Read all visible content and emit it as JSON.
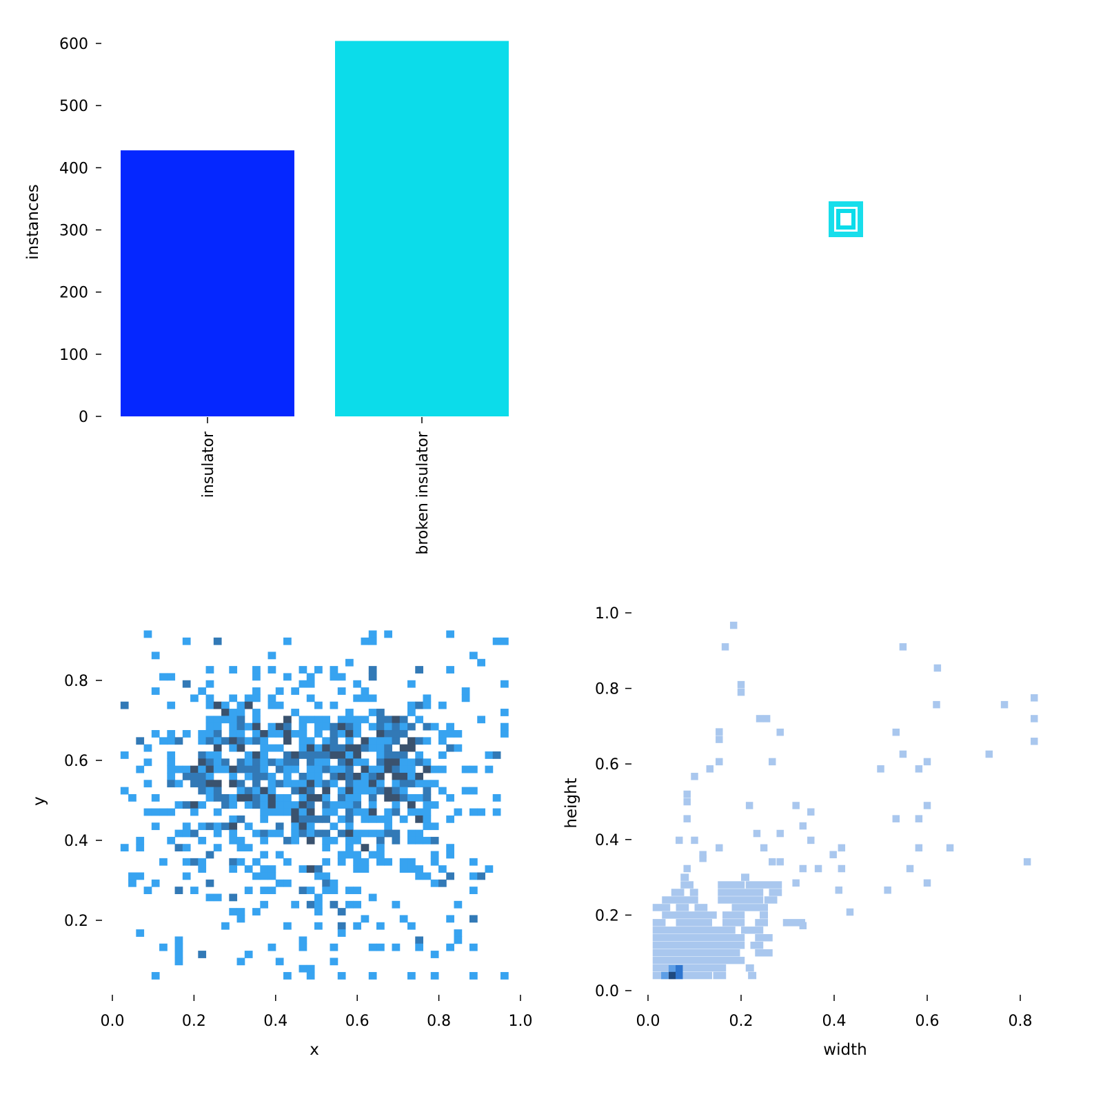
{
  "chart_data": [
    {
      "type": "bar",
      "categories": [
        "insulator",
        "broken insulator"
      ],
      "values": [
        428,
        604
      ],
      "colors": [
        "#0527ff",
        "#0cdcea"
      ],
      "ylabel": "instances",
      "xlabel": "",
      "ylim": [
        0,
        600
      ],
      "yticks": [
        "0",
        "100",
        "200",
        "300",
        "400",
        "500",
        "600"
      ],
      "grid": false
    },
    {
      "type": "box-overlay",
      "color": "#0cdcea"
    },
    {
      "type": "heatmap",
      "xlabel": "x",
      "ylabel": "y",
      "xlim": [
        0.0,
        1.0
      ],
      "ylim": [
        0.0,
        1.0
      ],
      "xticks": [
        "0.0",
        "0.2",
        "0.4",
        "0.6",
        "0.8",
        "1.0"
      ],
      "yticks": [
        "0.2",
        "0.4",
        "0.6",
        "0.8"
      ],
      "bins": {
        "x_start": 0.02,
        "x_width": 0.019,
        "y_top": 0.925,
        "y_height": 0.0178
      },
      "level_colors": {
        "1": "#37a3f0",
        "2": "#3279b6",
        "3": "#3a526e"
      },
      "rows": [
        "3 32 34 42",
        "8 12:2 21 31 32 48 49",
        "",
        "4 19 45",
        "29 46",
        "11 14 17 19 23 25 27 32:2 38:2 42",
        "5 6 17 21 24 27 28 32:2",
        "8:2 11 23 24 30 37 49",
        "4 10 17 20 22 28 31 44",
        "9 11 14 16 17 19 24 30 31 32 39 44",
        "0:2 6 11 12:3 13 15 16:3 19 20 25 27 37 38:2 39 41",
        "13:3 14 15 17 22 29 32 33:2 37 49",
        "11 12 13 14 15:2 17 21:3 23 24 25 26 28 29 30 31 33:2 34:2 35:3 36:2 38 46",
        "11 12 14 15:2 16 17:3 19 20:3 21:2 23 25 26 27:2 28:3 29:2 30 32 33:2 34 35:2 36 37:2 39:2 40 42 49",
        "4 6 8 10 11 12:2 14 15 17 18:3 19 20 21:3 22 23 25 27:2 28 29:3 30 33:3 34:2 35:2 36:2 41 42 43 49",
        "2:2 5 6 7:2 10 11:2 12 13:2 14:3 15:2 16 17:2 18 21:3 23 24 26 27:2 29 31:3 32 33 34 35:2 37:3 38:2 39 41",
        "3 12:3 14 15:3 18 19 20 23 24:3 25 26:3 27:2 28:2 29:3 30:3 31:2 32 33 34:2 36:3 37:3 42:2 43",
        "0 6 10:2 11 12 16 17:3 18 21:2 22:3 23:2 24:2 25:2 26:2 27:3 28:3 29 30:3 33 34:2 35:2 36:2 38 41 47 48:2",
        "3 6 10:3 11:2 12 13:2 15:2 16 17:2 18 19:2 20 21:2 22:2 24:2 25 26 28:2 29:3 30 31 33:2 34:3 35:3 36 37 38:2 39",
        "2 6 7 8 9:3 10 11:3 12 13 14:3 15:2 16:2 17:2 18 20:2 21 22 24 25 26:2 27 28 29:2 31:3 32 33 34:3 35:2 36 37 39:3 40 41 44 45 47",
        "6 8:2 9:2 10:2 11 14 16 17:2 18:2 19 21 23:2 24 25 27:2 28:3 29:2 30:3 31 32:2 33:3 35:3 36:3 37 38:3",
        "3 6:2 7 9:2 10:2 11:3 12:3 14:3 15:2 17:2 19 20:2 21 22 23 24:3 25 26:2 27 29:2 30 31 32:3 33 35 36:2 37:2 38 39 40",
        "0 10:2 11 12:2 15 16:2 17 18:3 19 22:2 23:3 24:2 26:3 28 29:3 30 31 32 33:2 34:3 35:2 36 39:2 41 44 45",
        "1 4 11 12:2 13:2 14 15:3 16:3 17:2 18 19:3 20 21 23 24:3 25:3 26 28:2 29 30 32:2 34:3 35:3 36:2 37 38 39:2 42 48",
        "7 8:2 9:3 10 13:2 14 16 17:2 18 19:3 20 21 22 23:3 24:2 26:2 27 28 29 30:2 32 35 37:3 39 40",
        "3 4 5 6 9 12 18 19 20 21 22:3 23 24:3 26 27 29:2 30 31 32:3 34 35:2 37 38 39 43 45 46 48",
        "14 15:2 18 22:3 23:2 24:2 25:2 26:2 28 29:2 31 32 33 34 36 38:3 39 42",
        "4 8 10 11:2 12 13:2 14:3 16 20:2 22 23:3 24 27 29 34 39 40",
        "7 8 9:2 12 14 17 18:2 19 20 22 23:2 24 25:2 26:2 28:2 29:3 30 31 32 33 34:2 35:2 37 38",
        "2 6 10 14 15 18 21:2 22 24:3 26 27 29 30 33:2 35:2 37 38 39 40:2",
        "0 2 7:2 8 12 15 16 26 29 31:3 33 42",
        "11:2 18 20 28 29 30 32 33 40 42",
        "5 8 9:2 10 14:2 15 17 21 26 28 30 31 33 34 36 37 40 45",
        "10 14 16 18 19 23 24:3 25:2 30 31 36 37 38 41 47",
        "1 2 8 17 18 19 25 26 38 39 42:2 45 46:2",
        "1 4 11:2 20 21 26:2 27 40 41:2",
        "3 7:2 9 16 18 19 23:2 24 26 27 29 30 45",
        "11 12 14:2 25 32",
        "18 22 24:2 25 27:2 29 30 35 43",
        "14 15 17 25 28:2",
        "15 31 36 42 45:2",
        "13 21 25 28:2 30 33 37",
        "2 28 43",
        "7 23 38:2 43",
        "5 7 19 23 27 32 33 35 38 42 45",
        "7 10:2 16 40",
        "7 15 20 27",
        "23 24",
        "4 21 24 28 32 37 40 45 49"
      ]
    },
    {
      "type": "heatmap",
      "xlabel": "width",
      "ylabel": "height",
      "xlim": [
        0.0,
        0.84
      ],
      "ylim": [
        0.0,
        1.0
      ],
      "xticks": [
        "0.0",
        "0.2",
        "0.4",
        "0.6",
        "0.8"
      ],
      "yticks": [
        "0.0",
        "0.2",
        "0.4",
        "0.6",
        "0.8",
        "1.0"
      ],
      "bins": {
        "x_width": 0.0155,
        "y_height": 0.0192
      },
      "level_colors": {
        "1": "#a9c7ee",
        "2": "#5d9ee6",
        "3": "#2f76d0",
        "4": "#1f4a80"
      },
      "cells": [
        [
          0.184,
          0.967,
          1
        ],
        [
          0.166,
          0.91,
          1
        ],
        [
          0.548,
          0.91,
          1
        ],
        [
          0.622,
          0.854,
          1
        ],
        [
          0.2,
          0.79,
          1
        ],
        [
          0.2,
          0.81,
          1
        ],
        [
          0.62,
          0.757,
          1
        ],
        [
          0.766,
          0.757,
          1
        ],
        [
          0.83,
          0.775,
          1
        ],
        [
          0.83,
          0.72,
          1
        ],
        [
          0.83,
          0.66,
          1
        ],
        [
          0.24,
          0.72,
          1
        ],
        [
          0.255,
          0.72,
          1
        ],
        [
          0.153,
          0.665,
          1
        ],
        [
          0.153,
          0.685,
          1
        ],
        [
          0.284,
          0.684,
          1
        ],
        [
          0.533,
          0.684,
          1
        ],
        [
          0.548,
          0.626,
          1
        ],
        [
          0.733,
          0.626,
          1
        ],
        [
          0.153,
          0.606,
          1
        ],
        [
          0.133,
          0.587,
          1
        ],
        [
          0.1,
          0.567,
          1
        ],
        [
          0.267,
          0.606,
          1
        ],
        [
          0.5,
          0.587,
          1
        ],
        [
          0.582,
          0.587,
          1
        ],
        [
          0.6,
          0.606,
          1
        ],
        [
          0.084,
          0.5,
          1
        ],
        [
          0.084,
          0.52,
          1
        ],
        [
          0.084,
          0.455,
          1
        ],
        [
          0.218,
          0.49,
          1
        ],
        [
          0.318,
          0.49,
          1
        ],
        [
          0.35,
          0.473,
          1
        ],
        [
          0.6,
          0.49,
          1
        ],
        [
          0.533,
          0.455,
          1
        ],
        [
          0.582,
          0.455,
          1
        ],
        [
          0.333,
          0.436,
          1
        ],
        [
          0.284,
          0.416,
          1
        ],
        [
          0.234,
          0.416,
          1
        ],
        [
          0.067,
          0.398,
          1
        ],
        [
          0.1,
          0.398,
          1
        ],
        [
          0.153,
          0.378,
          1
        ],
        [
          0.249,
          0.378,
          1
        ],
        [
          0.35,
          0.398,
          1
        ],
        [
          0.416,
          0.378,
          1
        ],
        [
          0.582,
          0.378,
          1
        ],
        [
          0.649,
          0.378,
          1
        ],
        [
          0.815,
          0.341,
          1
        ],
        [
          0.118,
          0.35,
          1
        ],
        [
          0.118,
          0.36,
          1
        ],
        [
          0.084,
          0.323,
          1
        ],
        [
          0.267,
          0.341,
          1
        ],
        [
          0.284,
          0.341,
          1
        ],
        [
          0.333,
          0.323,
          1
        ],
        [
          0.366,
          0.323,
          1
        ],
        [
          0.398,
          0.36,
          1
        ],
        [
          0.416,
          0.323,
          1
        ],
        [
          0.563,
          0.323,
          1
        ],
        [
          0.6,
          0.285,
          1
        ],
        [
          0.318,
          0.285,
          1
        ],
        [
          0.41,
          0.266,
          1
        ],
        [
          0.515,
          0.266,
          1
        ],
        [
          0.434,
          0.208,
          1
        ],
        [
          0.333,
          0.172,
          1
        ],
        [
          0.052,
          0.058,
          2
        ],
        [
          0.067,
          0.058,
          3
        ],
        [
          0.052,
          0.04,
          4
        ],
        [
          0.067,
          0.04,
          3
        ],
        [
          0.036,
          0.04,
          2
        ]
      ],
      "bands": [
        [
          0.04,
          [
            [
              0.01,
              0.13
            ],
            [
              0.14,
              0.16
            ],
            [
              0.215,
              0.225
            ]
          ]
        ],
        [
          0.06,
          [
            [
              0.01,
              0.16
            ],
            [
              0.21,
              0.22
            ]
          ]
        ],
        [
          0.08,
          [
            [
              0.01,
              0.2
            ]
          ]
        ],
        [
          0.1,
          [
            [
              0.01,
              0.19
            ],
            [
              0.23,
              0.26
            ]
          ]
        ],
        [
          0.12,
          [
            [
              0.01,
              0.2
            ],
            [
              0.22,
              0.24
            ]
          ]
        ],
        [
          0.14,
          [
            [
              0.01,
              0.2
            ],
            [
              0.23,
              0.26
            ]
          ]
        ],
        [
          0.16,
          [
            [
              0.01,
              0.18
            ],
            [
              0.2,
              0.24
            ]
          ]
        ],
        [
          0.18,
          [
            [
              0.01,
              0.03
            ],
            [
              0.06,
              0.13
            ],
            [
              0.16,
              0.2
            ],
            [
              0.23,
              0.25
            ],
            [
              0.29,
              0.33
            ]
          ]
        ],
        [
          0.2,
          [
            [
              0.03,
              0.14
            ],
            [
              0.16,
              0.2
            ],
            [
              0.24,
              0.25
            ]
          ]
        ],
        [
          0.22,
          [
            [
              0.01,
              0.04
            ],
            [
              0.06,
              0.08
            ],
            [
              0.1,
              0.12
            ],
            [
              0.18,
              0.25
            ]
          ]
        ],
        [
          0.24,
          [
            [
              0.03,
              0.1
            ],
            [
              0.15,
              0.24
            ],
            [
              0.25,
              0.27
            ]
          ]
        ],
        [
          0.26,
          [
            [
              0.05,
              0.07
            ],
            [
              0.09,
              0.1
            ],
            [
              0.15,
              0.24
            ],
            [
              0.26,
              0.28
            ]
          ]
        ],
        [
          0.28,
          [
            [
              0.07,
              0.09
            ],
            [
              0.15,
              0.2
            ],
            [
              0.21,
              0.28
            ]
          ]
        ],
        [
          0.3,
          [
            [
              0.07,
              0.08
            ],
            [
              0.2,
              0.21
            ]
          ]
        ]
      ]
    }
  ]
}
